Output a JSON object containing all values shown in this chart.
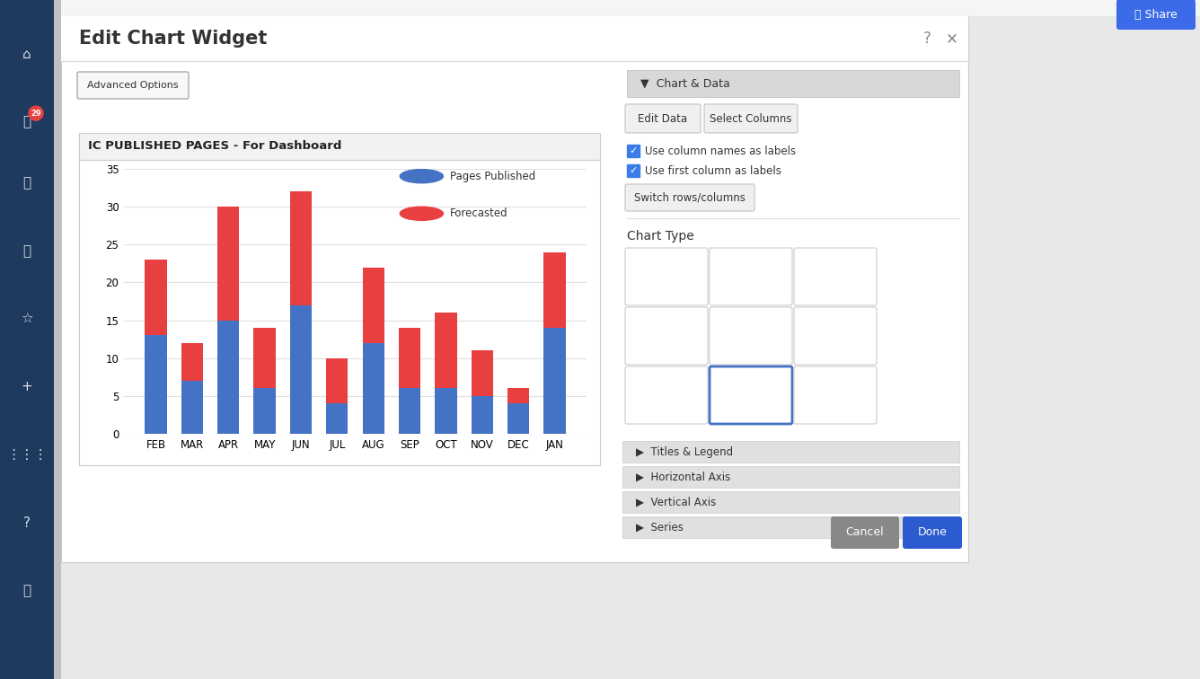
{
  "title": "IC PUBLISHED PAGES - For Dashboard",
  "categories": [
    "FEB",
    "MAR",
    "APR",
    "MAY",
    "JUN",
    "JUL",
    "AUG",
    "SEP",
    "OCT",
    "NOV",
    "DEC",
    "JAN"
  ],
  "pages_published": [
    13,
    7,
    15,
    6,
    17,
    4,
    12,
    6,
    6,
    5,
    4,
    14
  ],
  "forecasted": [
    10,
    5,
    15,
    8,
    15,
    6,
    10,
    8,
    10,
    6,
    2,
    10
  ],
  "color_blue": "#4472C4",
  "color_red": "#E84040",
  "legend_pages": "Pages Published",
  "legend_forecast": "Forecasted",
  "ylim": [
    0,
    35
  ],
  "yticks": [
    0,
    5,
    10,
    15,
    20,
    25,
    30,
    35
  ],
  "bar_width": 0.6,
  "sidebar_color": "#1e3a5f",
  "sidebar_icon_color": "#ffffff",
  "dialog_bg": "#ffffff",
  "outer_bg": "#e8e8e8",
  "chart_title_bg": "#f2f2f2",
  "panel_header_bg": "#d8d8d8",
  "section_header_bg": "#e0e0e0",
  "btn_bg": "#f0f0f0",
  "btn_border": "#cccccc",
  "done_btn_color": "#2b5bce",
  "cancel_btn_color": "#888888",
  "share_btn_color": "#3b6be8",
  "checkbox_color": "#3b7de8",
  "top_bar_bg": "#f5f5f5"
}
